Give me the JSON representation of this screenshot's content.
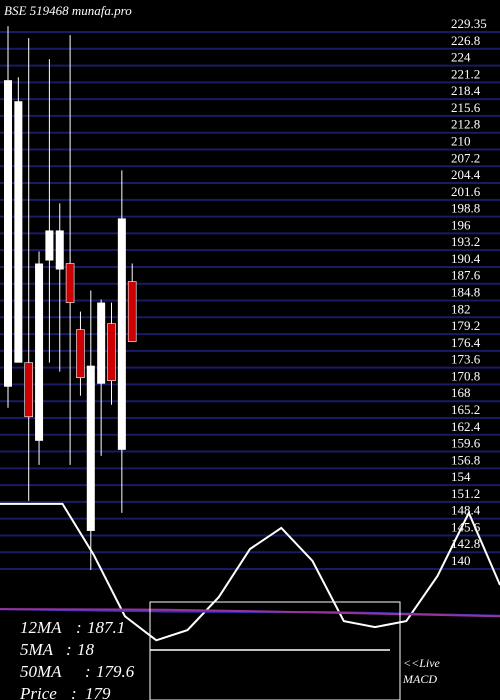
{
  "title": "BSE 519468 munafa.pro",
  "colors": {
    "background": "#000000",
    "grid": "#1a1a66",
    "up_candle": "#ffffff",
    "down_candle": "#cc0000",
    "ma_line": "#ffffff",
    "lower_line_blue": "#3333cc",
    "lower_line_purple": "#993399"
  },
  "chart_data": {
    "type": "candlestick",
    "ylim": [
      137,
      230
    ],
    "y_ticks": [
      "229.35",
      "226.8",
      "224",
      "221.2",
      "218.4",
      "215.6",
      "212.8",
      "210",
      "207.2",
      "204.4",
      "201.6",
      "198.8",
      "196",
      "193.2",
      "190.4",
      "187.6",
      "184.8",
      "182",
      "179.2",
      "176.4",
      "173.6",
      "170.8",
      "168",
      "165.2",
      "162.4",
      "159.6",
      "156.8",
      "154",
      "151.2",
      "148.4",
      "145.6",
      "142.8",
      "140"
    ],
    "candles": [
      {
        "open": 169.0,
        "high": 229.0,
        "low": 165.5,
        "close": 220.0
      },
      {
        "open": 173.0,
        "high": 220.5,
        "low": 173.0,
        "close": 216.5
      },
      {
        "open": 173.0,
        "high": 227.0,
        "low": 150.0,
        "close": 164.0
      },
      {
        "open": 160.0,
        "high": 191.5,
        "low": 156.0,
        "close": 189.5
      },
      {
        "open": 190.0,
        "high": 223.5,
        "low": 173.0,
        "close": 195.0
      },
      {
        "open": 188.5,
        "high": 199.5,
        "low": 171.5,
        "close": 195.0
      },
      {
        "open": 189.5,
        "high": 227.5,
        "low": 156.0,
        "close": 183.0
      },
      {
        "open": 178.5,
        "high": 181.5,
        "low": 167.5,
        "close": 170.5
      },
      {
        "open": 145.0,
        "high": 185.0,
        "low": 138.5,
        "close": 172.5
      },
      {
        "open": 169.5,
        "high": 183.5,
        "low": 157.5,
        "close": 183.0
      },
      {
        "open": 179.5,
        "high": 183.0,
        "low": 166.0,
        "close": 170.0
      },
      {
        "open": 158.5,
        "high": 205.0,
        "low": 148.0,
        "close": 197.0
      },
      {
        "open": 186.5,
        "high": 189.5,
        "low": 176.5,
        "close": 176.5
      }
    ],
    "ma_line": [
      149.5,
      149.5,
      149.5,
      141.0,
      130.8,
      126.8,
      128.5,
      134.0,
      142.0,
      145.5,
      140.0,
      130.0,
      129.0,
      130.0,
      137.5,
      148.0,
      136.0
    ],
    "lower_blue_line": [
      132.0,
      131.6,
      131.5,
      130.9
    ],
    "lower_purple_line": [
      132.0,
      131.9,
      131.4,
      130.8
    ],
    "moving_averages": [
      {
        "label": "12MA",
        "value": "187.1"
      },
      {
        "label": "5MA",
        "value": "18"
      },
      {
        "label": "50MA",
        "value": "179.6"
      },
      {
        "label": "Price",
        "value": "179"
      }
    ],
    "macd_label": "<<Live MACD",
    "macd_label_lines": [
      "<<Live",
      "MACD"
    ]
  }
}
